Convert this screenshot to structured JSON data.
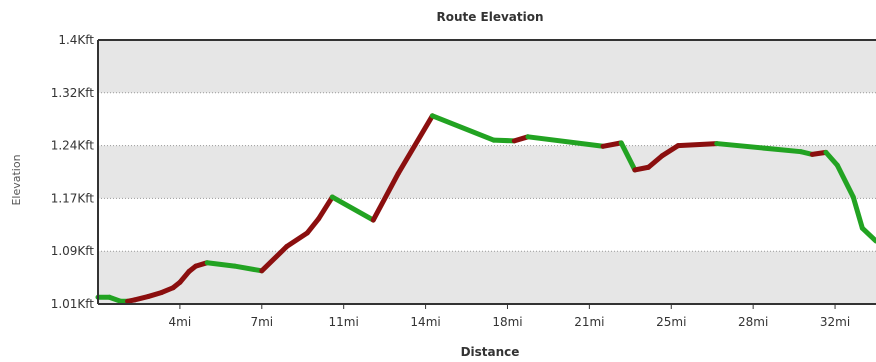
{
  "chart_data": {
    "type": "line",
    "title": "Route Elevation",
    "xlabel": "Distance",
    "ylabel": "Elevation",
    "y_ticks": [
      "1.01Kft",
      "1.09Kft",
      "1.17Kft",
      "1.24Kft",
      "1.32Kft",
      "1.4Kft"
    ],
    "y_tick_values": [
      1010,
      1088,
      1166,
      1244,
      1322,
      1400
    ],
    "x_ticks": [
      "4mi",
      "7mi",
      "11mi",
      "14mi",
      "18mi",
      "21mi",
      "25mi",
      "28mi",
      "32mi"
    ],
    "x_tick_values": [
      3.6,
      7.2,
      10.8,
      14.4,
      18.0,
      21.6,
      25.2,
      28.8,
      32.4
    ],
    "xlim": [
      0,
      34.2
    ],
    "ylim": [
      1010,
      1400
    ],
    "grid": "horizontal bands",
    "colors": {
      "ascent": "#8b0f0f",
      "descent": "#22a322",
      "band": "#e6e6e6",
      "grid": "#999999",
      "frame": "#333333"
    },
    "series": [
      {
        "x": [
          0,
          0.5,
          1.0,
          1.3,
          1.6,
          2.2,
          2.8,
          3.3,
          3.6,
          4.0,
          4.3,
          4.8,
          6.0,
          7.2,
          8.3,
          9.2,
          9.7,
          10.3,
          12.1,
          13.2,
          14.7,
          17.4,
          18.3,
          18.9,
          22.2,
          23.0,
          23.6,
          24.2,
          24.8,
          25.5,
          27.2,
          30.9,
          31.4,
          32.0,
          32.5,
          33.2,
          33.6,
          34.2
        ],
        "y": [
          1020,
          1020,
          1014,
          1014,
          1016,
          1021,
          1027,
          1034,
          1042,
          1058,
          1066,
          1071,
          1066,
          1059,
          1095,
          1115,
          1136,
          1168,
          1134,
          1203,
          1288,
          1252,
          1251,
          1257,
          1243,
          1248,
          1208,
          1212,
          1229,
          1244,
          1247,
          1235,
          1231,
          1234,
          1215,
          1168,
          1122,
          1103
        ]
      }
    ]
  }
}
